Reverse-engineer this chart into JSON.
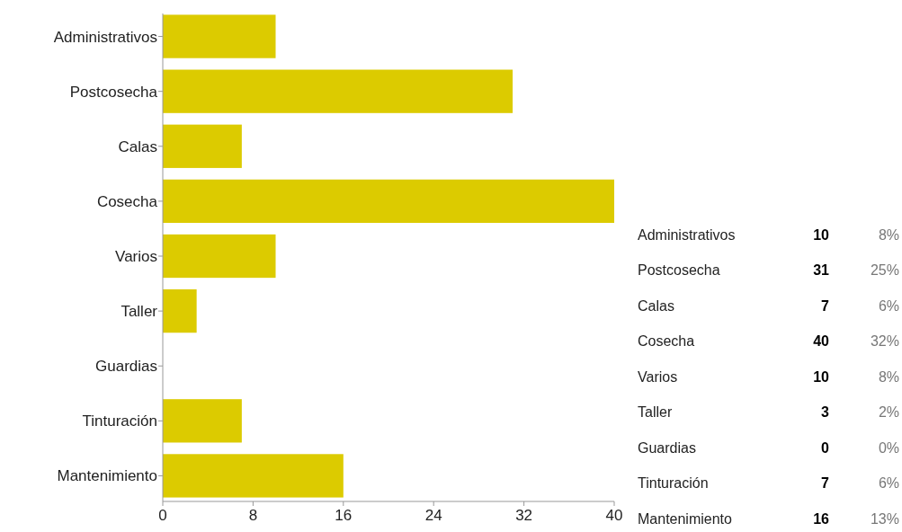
{
  "chart_data": {
    "type": "bar",
    "orientation": "horizontal",
    "categories": [
      "Administrativos",
      "Postcosecha",
      "Calas",
      "Cosecha",
      "Varios",
      "Taller",
      "Guardias",
      "Tinturación",
      "Mantenimiento"
    ],
    "values": [
      10,
      31,
      7,
      40,
      10,
      3,
      0,
      7,
      16
    ],
    "color": "#dccb00",
    "xlim": [
      0,
      40
    ],
    "xticks": [
      0,
      8,
      16,
      24,
      32,
      40
    ],
    "annotations": [
      "10",
      "31",
      "7",
      "40",
      "10",
      "3",
      "0",
      "7",
      "16",
      "8%",
      "25%",
      "6%",
      "32%",
      "8%",
      "2%",
      "0%",
      "6%",
      "13%"
    ]
  }
}
